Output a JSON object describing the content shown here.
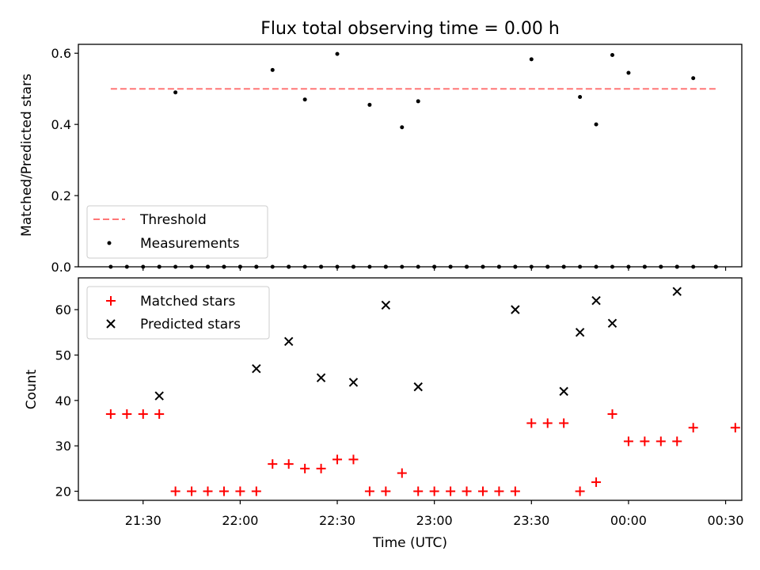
{
  "title": "Flux total observing time = 0.00 h",
  "xlabel": "Time (UTC)",
  "x_ticks": [
    "21:30",
    "22:00",
    "22:30",
    "23:00",
    "23:30",
    "00:00",
    "00:30"
  ],
  "colors": {
    "threshold": "#ff7777",
    "measurements": "#000000",
    "matched": "#ff0000",
    "predicted": "#000000"
  },
  "chart_data": [
    {
      "type": "scatter",
      "ylabel": "Matched/Predicted stars",
      "ylim": [
        0,
        0.625
      ],
      "xlim": [
        "21:10",
        "00:35"
      ],
      "y_ticks": [
        "0.0",
        "0.2",
        "0.4",
        "0.6"
      ],
      "y_tick_values": [
        0,
        0.2,
        0.4,
        0.6
      ],
      "legend_position": "lower-left",
      "threshold": {
        "name": "Threshold",
        "x": [
          "21:20",
          "00:27"
        ],
        "y": 0.5
      },
      "series": [
        {
          "name": "Measurements",
          "x": [
            "21:20",
            "21:25",
            "21:30",
            "21:35",
            "21:40",
            "21:45",
            "21:50",
            "21:55",
            "22:00",
            "22:05",
            "22:10",
            "22:15",
            "22:20",
            "22:25",
            "22:30",
            "22:35",
            "22:40",
            "22:45",
            "22:50",
            "22:55",
            "23:00",
            "23:05",
            "23:10",
            "23:15",
            "23:20",
            "23:25",
            "23:30",
            "23:35",
            "23:40",
            "23:45",
            "23:50",
            "23:55",
            "00:00",
            "00:05",
            "00:10",
            "00:15",
            "00:20",
            "00:27",
            "21:35",
            "21:40",
            "21:45",
            "21:50",
            "21:55",
            "22:00",
            "22:05",
            "22:10",
            "22:15",
            "22:20",
            "22:25",
            "22:30",
            "22:35",
            "22:40",
            "22:45",
            "22:50",
            "22:55",
            "23:00",
            "23:05",
            "23:10",
            "23:15",
            "23:20",
            "23:25",
            "23:30",
            "23:35",
            "23:40",
            "23:45",
            "23:50",
            "23:55",
            "00:00",
            "00:05",
            "00:10",
            "00:15",
            "00:20",
            "00:27"
          ],
          "y": [
            0,
            0,
            0,
            0,
            0.49,
            0,
            0,
            0,
            0,
            0,
            0.553,
            0,
            0.47,
            0,
            0.598,
            0,
            0.455,
            0,
            0.392,
            0.465,
            0,
            0,
            0,
            0,
            0,
            0,
            0.583,
            0,
            0,
            0.477,
            0.4,
            0.595,
            0.545,
            0,
            0,
            0,
            0.53,
            0,
            0,
            0,
            0,
            0,
            0,
            0,
            0,
            0,
            0,
            0,
            0,
            0,
            0,
            0,
            0,
            0,
            0,
            0,
            0,
            0,
            0,
            0,
            0,
            0,
            0,
            0,
            0,
            0,
            0,
            0,
            0,
            0,
            0,
            0,
            0
          ]
        }
      ]
    },
    {
      "type": "scatter",
      "ylabel": "Count",
      "ylim": [
        18,
        67
      ],
      "xlim": [
        "21:10",
        "00:35"
      ],
      "y_ticks": [
        "20",
        "30",
        "40",
        "50",
        "60"
      ],
      "y_tick_values": [
        20,
        30,
        40,
        50,
        60
      ],
      "legend_position": "upper-left",
      "series": [
        {
          "name": "Matched stars",
          "marker": "plus",
          "x": [
            "21:20",
            "21:25",
            "21:30",
            "21:35",
            "21:40",
            "21:45",
            "21:50",
            "21:55",
            "22:00",
            "22:05",
            "22:10",
            "22:15",
            "22:20",
            "22:25",
            "22:30",
            "22:35",
            "22:40",
            "22:45",
            "22:50",
            "22:55",
            "23:00",
            "23:05",
            "23:10",
            "23:15",
            "23:20",
            "23:25",
            "23:30",
            "23:35",
            "23:40",
            "23:45",
            "23:50",
            "23:55",
            "00:00",
            "00:05",
            "00:10",
            "00:15",
            "00:20",
            "00:33"
          ],
          "y": [
            37,
            37,
            37,
            37,
            20,
            20,
            20,
            20,
            20,
            20,
            26,
            26,
            25,
            25,
            27,
            27,
            20,
            20,
            24,
            20,
            20,
            20,
            20,
            20,
            20,
            20,
            35,
            35,
            35,
            20,
            22,
            37,
            31,
            31,
            31,
            31,
            34,
            34
          ]
        },
        {
          "name": "Predicted stars",
          "marker": "x",
          "x": [
            "21:35",
            "22:05",
            "22:15",
            "22:25",
            "22:35",
            "22:45",
            "22:55",
            "23:25",
            "23:40",
            "23:45",
            "23:50",
            "23:55",
            "00:15"
          ],
          "y": [
            41,
            47,
            53,
            45,
            44,
            61,
            43,
            60,
            42,
            55,
            62,
            57,
            64
          ]
        }
      ]
    }
  ]
}
